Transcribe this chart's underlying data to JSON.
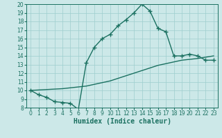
{
  "xlabel": "Humidex (Indice chaleur)",
  "bg_color": "#cce8e8",
  "line_color": "#1a7060",
  "grid_color": "#9ecece",
  "xlim": [
    -0.5,
    23.5
  ],
  "ylim": [
    8,
    20
  ],
  "xticks": [
    0,
    1,
    2,
    3,
    4,
    5,
    6,
    7,
    8,
    9,
    10,
    11,
    12,
    13,
    14,
    15,
    16,
    17,
    18,
    19,
    20,
    21,
    22,
    23
  ],
  "yticks": [
    8,
    9,
    10,
    11,
    12,
    13,
    14,
    15,
    16,
    17,
    18,
    19,
    20
  ],
  "curve1_x": [
    0,
    1,
    2,
    3,
    4,
    5,
    6,
    7,
    8,
    9,
    10,
    11,
    12,
    13,
    14,
    15,
    16,
    17,
    18,
    19,
    20,
    21,
    22,
    23
  ],
  "curve1_y": [
    10.0,
    9.5,
    9.2,
    8.7,
    8.6,
    8.5,
    7.8,
    13.2,
    15.0,
    16.0,
    16.5,
    17.5,
    18.2,
    19.0,
    20.0,
    19.2,
    17.2,
    16.8,
    14.0,
    14.0,
    14.2,
    14.0,
    13.5,
    13.5
  ],
  "curve2_x": [
    0,
    1,
    2,
    3,
    4,
    5,
    6,
    7,
    8,
    9,
    10,
    11,
    12,
    13,
    14,
    15,
    16,
    17,
    18,
    19,
    20,
    21,
    22,
    23
  ],
  "curve2_y": [
    10.0,
    10.05,
    10.1,
    10.15,
    10.2,
    10.3,
    10.4,
    10.5,
    10.7,
    10.9,
    11.1,
    11.4,
    11.7,
    12.0,
    12.3,
    12.6,
    12.9,
    13.1,
    13.3,
    13.5,
    13.6,
    13.7,
    13.85,
    14.0
  ],
  "marker": "+",
  "marker_size": 4,
  "line_width": 1.0,
  "xlabel_fontsize": 7,
  "tick_fontsize": 5.5
}
